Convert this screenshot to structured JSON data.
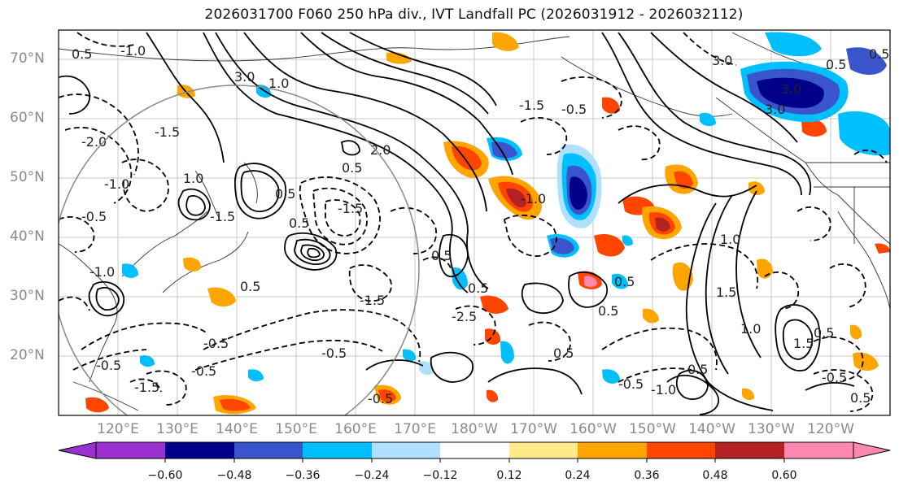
{
  "title": "2026031700 F060 250 hPa div., IVT Landfall PC (2026031912 - 2026032112)",
  "lat_labels": [
    "70°N",
    "60°N",
    "50°N",
    "40°N",
    "30°N",
    "20°N"
  ],
  "lon_labels": [
    "120°E",
    "130°E",
    "140°E",
    "150°E",
    "160°E",
    "170°E",
    "180°W",
    "170°W",
    "160°W",
    "150°W",
    "140°W",
    "130°W",
    "120°W"
  ],
  "colorbar": {
    "colors": [
      "#9b30d0",
      "#00008b",
      "#3a55cc",
      "#00bfff",
      "#b0e0ff",
      "#ffffff",
      "#ffe98a",
      "#ffa500",
      "#ff4500",
      "#b22222",
      "#ff88b0"
    ],
    "tick_labels": [
      "−0.60",
      "−0.48",
      "−0.36",
      "−0.24",
      "−0.12",
      "0.12",
      "0.24",
      "0.36",
      "0.48",
      "0.60"
    ]
  },
  "contour_labels": [
    "0.5",
    "1.0",
    "1.5",
    "2.0",
    "3.0",
    "-0.5",
    "-1.0",
    "-1.5",
    "-2.0",
    "-2.5"
  ]
}
